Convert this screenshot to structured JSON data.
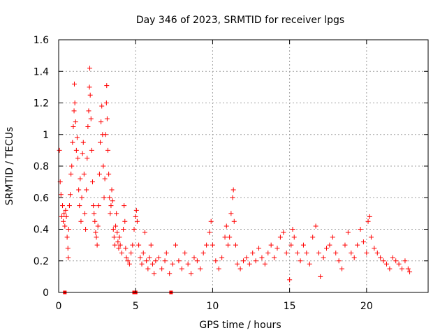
{
  "chart_data": {
    "type": "scatter",
    "title": "Day 346 of 2023, SRMTID for receiver lpgs",
    "xlabel": "GPS time / hours",
    "ylabel": "SRMTID / TECUs",
    "xlim": [
      0,
      24
    ],
    "ylim": [
      0,
      1.6
    ],
    "x_ticks": [
      0,
      5,
      10,
      15,
      20
    ],
    "x_tick_labels": [
      "0",
      "5",
      "10",
      "15",
      "20"
    ],
    "y_ticks": [
      0,
      0.2,
      0.4,
      0.6,
      0.8,
      1.0,
      1.2,
      1.4,
      1.6
    ],
    "y_tick_labels": [
      "0",
      "0.2",
      "0.4",
      "0.6",
      "0.8",
      "1",
      "1.2",
      "1.4",
      "1.6"
    ],
    "grid": true,
    "marker": "plus",
    "colors": {
      "series": "#ff0000",
      "grid": "#a0a0a0",
      "axis": "#000000"
    },
    "series": [
      {
        "name": "SRMTID",
        "points": [
          [
            0.05,
            0.9
          ],
          [
            0.1,
            0.7
          ],
          [
            0.15,
            0.62
          ],
          [
            0.2,
            0.48
          ],
          [
            0.25,
            0.55
          ],
          [
            0.3,
            0.45
          ],
          [
            0.35,
            0.5
          ],
          [
            0.4,
            0.42
          ],
          [
            0.45,
            0.52
          ],
          [
            0.5,
            0.48
          ],
          [
            0.55,
            0.35
          ],
          [
            0.6,
            0.28
          ],
          [
            0.62,
            0.22
          ],
          [
            0.65,
            0.4
          ],
          [
            0.7,
            0.55
          ],
          [
            0.75,
            0.62
          ],
          [
            0.8,
            0.75
          ],
          [
            0.85,
            0.8
          ],
          [
            0.9,
            0.95
          ],
          [
            0.95,
            1.05
          ],
          [
            1.0,
            1.15
          ],
          [
            1.02,
            1.32
          ],
          [
            1.05,
            1.2
          ],
          [
            1.1,
            1.08
          ],
          [
            1.15,
            0.9
          ],
          [
            1.2,
            0.98
          ],
          [
            1.25,
            0.85
          ],
          [
            1.3,
            0.65
          ],
          [
            1.35,
            0.55
          ],
          [
            1.4,
            0.72
          ],
          [
            1.45,
            0.45
          ],
          [
            1.5,
            0.6
          ],
          [
            1.55,
            0.88
          ],
          [
            1.6,
            0.95
          ],
          [
            1.65,
            0.75
          ],
          [
            1.7,
            0.5
          ],
          [
            1.75,
            0.4
          ],
          [
            1.8,
            0.65
          ],
          [
            1.85,
            0.85
          ],
          [
            1.9,
            1.05
          ],
          [
            1.95,
            1.15
          ],
          [
            2.0,
            1.3
          ],
          [
            2.02,
            1.42
          ],
          [
            2.05,
            1.25
          ],
          [
            2.1,
            1.1
          ],
          [
            2.15,
            0.9
          ],
          [
            2.2,
            0.7
          ],
          [
            2.25,
            0.55
          ],
          [
            2.3,
            0.5
          ],
          [
            2.35,
            0.45
          ],
          [
            2.4,
            0.38
          ],
          [
            2.45,
            0.35
          ],
          [
            2.5,
            0.3
          ],
          [
            2.55,
            0.42
          ],
          [
            2.6,
            0.55
          ],
          [
            2.65,
            0.75
          ],
          [
            2.7,
            0.95
          ],
          [
            2.75,
            1.08
          ],
          [
            2.8,
            1.18
          ],
          [
            2.85,
            1.0
          ],
          [
            2.9,
            0.8
          ],
          [
            2.95,
            0.6
          ],
          [
            3.0,
            0.72
          ],
          [
            3.05,
            1.0
          ],
          [
            3.1,
            1.2
          ],
          [
            3.12,
            1.31
          ],
          [
            3.15,
            1.1
          ],
          [
            3.2,
            0.9
          ],
          [
            3.25,
            0.75
          ],
          [
            3.3,
            0.6
          ],
          [
            3.35,
            0.5
          ],
          [
            3.4,
            0.55
          ],
          [
            3.45,
            0.65
          ],
          [
            3.5,
            0.58
          ],
          [
            3.55,
            0.4
          ],
          [
            3.6,
            0.35
          ],
          [
            3.65,
            0.3
          ],
          [
            3.7,
            0.42
          ],
          [
            3.75,
            0.5
          ],
          [
            3.8,
            0.38
          ],
          [
            3.85,
            0.32
          ],
          [
            3.9,
            0.28
          ],
          [
            3.95,
            0.35
          ],
          [
            4.0,
            0.3
          ],
          [
            4.1,
            0.25
          ],
          [
            4.2,
            0.4
          ],
          [
            4.25,
            0.55
          ],
          [
            4.3,
            0.45
          ],
          [
            4.35,
            0.28
          ],
          [
            4.4,
            0.22
          ],
          [
            4.5,
            0.2
          ],
          [
            4.6,
            0.18
          ],
          [
            4.7,
            0.25
          ],
          [
            4.8,
            0.3
          ],
          [
            4.9,
            0.4
          ],
          [
            5.0,
            0.48
          ],
          [
            5.05,
            0.52
          ],
          [
            5.1,
            0.45
          ],
          [
            5.2,
            0.3
          ],
          [
            5.3,
            0.22
          ],
          [
            5.4,
            0.18
          ],
          [
            5.5,
            0.25
          ],
          [
            5.6,
            0.38
          ],
          [
            5.7,
            0.2
          ],
          [
            5.8,
            0.15
          ],
          [
            5.9,
            0.22
          ],
          [
            6.0,
            0.3
          ],
          [
            6.1,
            0.18
          ],
          [
            6.2,
            0.12
          ],
          [
            6.3,
            0.2
          ],
          [
            6.5,
            0.22
          ],
          [
            6.7,
            0.15
          ],
          [
            6.9,
            0.2
          ],
          [
            7.0,
            0.25
          ],
          [
            7.2,
            0.12
          ],
          [
            7.4,
            0.18
          ],
          [
            7.6,
            0.3
          ],
          [
            7.8,
            0.2
          ],
          [
            8.0,
            0.15
          ],
          [
            8.2,
            0.25
          ],
          [
            8.4,
            0.18
          ],
          [
            8.6,
            0.12
          ],
          [
            8.8,
            0.22
          ],
          [
            9.0,
            0.2
          ],
          [
            9.2,
            0.15
          ],
          [
            9.4,
            0.25
          ],
          [
            9.6,
            0.3
          ],
          [
            9.8,
            0.38
          ],
          [
            9.9,
            0.45
          ],
          [
            10.0,
            0.3
          ],
          [
            10.2,
            0.2
          ],
          [
            10.4,
            0.15
          ],
          [
            10.6,
            0.22
          ],
          [
            10.8,
            0.35
          ],
          [
            10.9,
            0.42
          ],
          [
            11.0,
            0.3
          ],
          [
            11.1,
            0.35
          ],
          [
            11.2,
            0.5
          ],
          [
            11.3,
            0.6
          ],
          [
            11.35,
            0.65
          ],
          [
            11.4,
            0.45
          ],
          [
            11.5,
            0.3
          ],
          [
            11.6,
            0.18
          ],
          [
            11.8,
            0.15
          ],
          [
            12.0,
            0.2
          ],
          [
            12.2,
            0.22
          ],
          [
            12.4,
            0.18
          ],
          [
            12.6,
            0.25
          ],
          [
            12.8,
            0.2
          ],
          [
            13.0,
            0.28
          ],
          [
            13.2,
            0.22
          ],
          [
            13.4,
            0.18
          ],
          [
            13.6,
            0.25
          ],
          [
            13.8,
            0.3
          ],
          [
            14.0,
            0.22
          ],
          [
            14.2,
            0.28
          ],
          [
            14.4,
            0.35
          ],
          [
            14.6,
            0.38
          ],
          [
            14.8,
            0.25
          ],
          [
            15.0,
            0.08
          ],
          [
            15.1,
            0.3
          ],
          [
            15.2,
            0.4
          ],
          [
            15.3,
            0.35
          ],
          [
            15.5,
            0.25
          ],
          [
            15.7,
            0.2
          ],
          [
            15.9,
            0.3
          ],
          [
            16.1,
            0.25
          ],
          [
            16.3,
            0.18
          ],
          [
            16.5,
            0.35
          ],
          [
            16.7,
            0.42
          ],
          [
            16.9,
            0.25
          ],
          [
            17.0,
            0.1
          ],
          [
            17.2,
            0.22
          ],
          [
            17.4,
            0.28
          ],
          [
            17.6,
            0.3
          ],
          [
            17.8,
            0.35
          ],
          [
            18.0,
            0.25
          ],
          [
            18.2,
            0.2
          ],
          [
            18.4,
            0.15
          ],
          [
            18.6,
            0.3
          ],
          [
            18.8,
            0.38
          ],
          [
            19.0,
            0.25
          ],
          [
            19.2,
            0.22
          ],
          [
            19.4,
            0.3
          ],
          [
            19.6,
            0.4
          ],
          [
            19.8,
            0.32
          ],
          [
            20.0,
            0.25
          ],
          [
            20.1,
            0.45
          ],
          [
            20.2,
            0.48
          ],
          [
            20.3,
            0.35
          ],
          [
            20.5,
            0.28
          ],
          [
            20.7,
            0.25
          ],
          [
            20.9,
            0.22
          ],
          [
            21.1,
            0.2
          ],
          [
            21.3,
            0.18
          ],
          [
            21.5,
            0.15
          ],
          [
            21.7,
            0.22
          ],
          [
            21.9,
            0.2
          ],
          [
            22.1,
            0.18
          ],
          [
            22.3,
            0.15
          ],
          [
            22.5,
            0.2
          ],
          [
            22.7,
            0.15
          ],
          [
            22.8,
            0.13
          ]
        ]
      },
      {
        "name": "zero-markers",
        "marker": "square",
        "points": [
          [
            0.4,
            0.0
          ],
          [
            4.9,
            0.0
          ],
          [
            5.0,
            0.0
          ],
          [
            7.3,
            0.0
          ]
        ]
      }
    ]
  }
}
